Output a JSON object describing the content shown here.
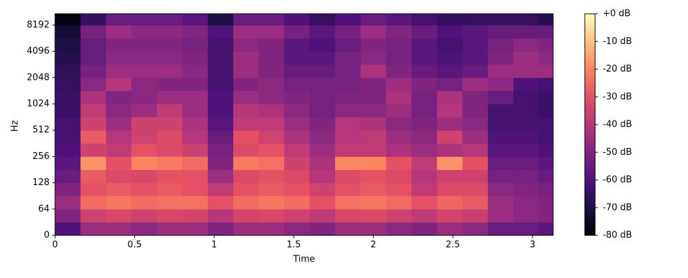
{
  "chart_data": {
    "type": "heatmap",
    "xlabel": "Time",
    "ylabel": "Hz",
    "colormap": "magma",
    "yscale": "symlog2",
    "xlim": [
      0,
      3.13
    ],
    "xticks": [
      0,
      0.5,
      1,
      1.5,
      2,
      2.5,
      3
    ],
    "ylim": [
      0,
      11025
    ],
    "yticks": [
      0,
      64,
      128,
      256,
      512,
      1024,
      2048,
      4096,
      8192
    ],
    "zlim": [
      -80,
      0
    ],
    "zticks": [
      {
        "value": 0,
        "label": "+0 dB"
      },
      {
        "value": -10,
        "label": "-10 dB"
      },
      {
        "value": -20,
        "label": "-20 dB"
      },
      {
        "value": -30,
        "label": "-30 dB"
      },
      {
        "value": -40,
        "label": "-40 dB"
      },
      {
        "value": -50,
        "label": "-50 dB"
      },
      {
        "value": -60,
        "label": "-60 dB"
      },
      {
        "value": -70,
        "label": "-70 dB"
      },
      {
        "value": -80,
        "label": "-80 dB"
      }
    ],
    "x_edges": [
      0,
      0.16,
      0.32,
      0.48,
      0.64,
      0.8,
      0.96,
      1.12,
      1.28,
      1.44,
      1.6,
      1.76,
      1.92,
      2.08,
      2.24,
      2.4,
      2.56,
      2.72,
      2.88,
      3.04,
      3.13
    ],
    "y_edges": [
      0,
      32,
      64,
      91,
      128,
      181,
      256,
      362,
      512,
      724,
      1024,
      1448,
      2048,
      2896,
      4096,
      5793,
      8192,
      11025
    ],
    "z": [
      [
        -60,
        -45,
        -45,
        -48,
        -45,
        -45,
        -50,
        -45,
        -45,
        -48,
        -50,
        -45,
        -45,
        -48,
        -50,
        -45,
        -48,
        -55,
        -55,
        -58
      ],
      [
        -50,
        -35,
        -33,
        -35,
        -33,
        -34,
        -40,
        -34,
        -33,
        -35,
        -38,
        -33,
        -32,
        -35,
        -38,
        -34,
        -36,
        -45,
        -48,
        -50
      ],
      [
        -45,
        -25,
        -23,
        -25,
        -24,
        -24,
        -30,
        -25,
        -23,
        -25,
        -30,
        -24,
        -23,
        -25,
        -30,
        -26,
        -28,
        -45,
        -48,
        -50
      ],
      [
        -50,
        -30,
        -28,
        -30,
        -28,
        -30,
        -38,
        -30,
        -28,
        -30,
        -35,
        -30,
        -28,
        -30,
        -38,
        -32,
        -32,
        -48,
        -50,
        -52
      ],
      [
        -55,
        -28,
        -32,
        -33,
        -30,
        -30,
        -45,
        -32,
        -30,
        -32,
        -40,
        -32,
        -30,
        -32,
        -40,
        -35,
        -35,
        -52,
        -52,
        -55
      ],
      [
        -58,
        -18,
        -30,
        -20,
        -22,
        -25,
        -50,
        -22,
        -24,
        -35,
        -42,
        -20,
        -20,
        -30,
        -38,
        -18,
        -30,
        -55,
        -55,
        -58
      ],
      [
        -60,
        -35,
        -38,
        -30,
        -32,
        -35,
        -52,
        -32,
        -30,
        -38,
        -45,
        -38,
        -38,
        -42,
        -45,
        -42,
        -40,
        -58,
        -58,
        -60
      ],
      [
        -62,
        -28,
        -40,
        -35,
        -32,
        -40,
        -55,
        -30,
        -35,
        -42,
        -48,
        -40,
        -38,
        -45,
        -48,
        -35,
        -45,
        -60,
        -60,
        -62
      ],
      [
        -62,
        -35,
        -45,
        -35,
        -35,
        -42,
        -58,
        -38,
        -38,
        -45,
        -50,
        -40,
        -42,
        -48,
        -50,
        -45,
        -48,
        -62,
        -62,
        -62
      ],
      [
        -64,
        -38,
        -48,
        -45,
        -38,
        -45,
        -60,
        -40,
        -42,
        -48,
        -52,
        -48,
        -48,
        -45,
        -52,
        -40,
        -50,
        -62,
        -62,
        -64
      ],
      [
        -64,
        -42,
        -50,
        -48,
        -45,
        -45,
        -60,
        -45,
        -48,
        -50,
        -52,
        -50,
        -50,
        -42,
        -52,
        -42,
        -50,
        -55,
        -62,
        -64
      ],
      [
        -65,
        -48,
        -40,
        -48,
        -50,
        -50,
        -62,
        -50,
        -48,
        -52,
        -52,
        -52,
        -50,
        -45,
        -50,
        -52,
        -45,
        -48,
        -60,
        -62
      ],
      [
        -66,
        -52,
        -45,
        -45,
        -45,
        -48,
        -62,
        -45,
        -50,
        -55,
        -55,
        -52,
        -42,
        -50,
        -55,
        -58,
        -55,
        -45,
        -45,
        -45
      ],
      [
        -68,
        -55,
        -48,
        -48,
        -48,
        -50,
        -62,
        -45,
        -50,
        -58,
        -58,
        -52,
        -48,
        -52,
        -58,
        -60,
        -58,
        -50,
        -45,
        -48
      ],
      [
        -70,
        -55,
        -50,
        -50,
        -50,
        -52,
        -62,
        -48,
        -50,
        -58,
        -60,
        -55,
        -50,
        -52,
        -58,
        -62,
        -58,
        -52,
        -48,
        -50
      ],
      [
        -72,
        -52,
        -45,
        -48,
        -48,
        -50,
        -60,
        -45,
        -45,
        -52,
        -58,
        -52,
        -45,
        -50,
        -55,
        -60,
        -58,
        -55,
        -55,
        -55
      ],
      [
        -78,
        -65,
        -55,
        -55,
        -55,
        -58,
        -70,
        -55,
        -55,
        -60,
        -65,
        -60,
        -55,
        -58,
        -62,
        -65,
        -65,
        -65,
        -65,
        -68
      ]
    ]
  }
}
